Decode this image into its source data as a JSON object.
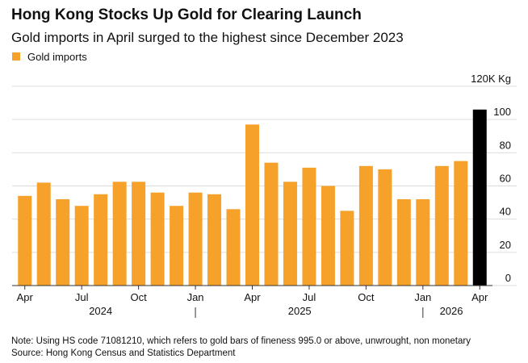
{
  "chart_data": {
    "type": "bar",
    "title": "Hong Kong Stocks Up Gold for Clearing Launch",
    "subtitle": "Gold imports in April surged to the highest since December 2023",
    "series": [
      {
        "name": "Gold imports",
        "color": "#f5a12a",
        "values": [
          54,
          62,
          52,
          48,
          55,
          62.5,
          62.5,
          56,
          48,
          56,
          55,
          46,
          97,
          74,
          62.5,
          71,
          60,
          45,
          72,
          70,
          52,
          52,
          72,
          75,
          106
        ],
        "colors": [
          "#f5a12a",
          "#f5a12a",
          "#f5a12a",
          "#f5a12a",
          "#f5a12a",
          "#f5a12a",
          "#f5a12a",
          "#f5a12a",
          "#f5a12a",
          "#f5a12a",
          "#f5a12a",
          "#f5a12a",
          "#f5a12a",
          "#f5a12a",
          "#f5a12a",
          "#f5a12a",
          "#f5a12a",
          "#f5a12a",
          "#f5a12a",
          "#f5a12a",
          "#f5a12a",
          "#f5a12a",
          "#f5a12a",
          "#f5a12a",
          "#000000"
        ]
      }
    ],
    "categories": [
      "Apr",
      null,
      null,
      "Jul",
      null,
      null,
      "Oct",
      null,
      null,
      "Jan",
      null,
      null,
      "Apr",
      null,
      null,
      "Jul",
      null,
      null,
      "Oct",
      null,
      null,
      "Jan",
      null,
      null,
      "Apr"
    ],
    "years": [
      "2024",
      "2025",
      "2026"
    ],
    "ylim": [
      0,
      120
    ],
    "yticks": [
      0,
      20,
      40,
      60,
      80,
      100,
      {
        "value": 120,
        "label": "120K Kg"
      }
    ],
    "grid": true,
    "note": "Note: Using HS code 71081210, which refers to gold bars of fineness 995.0 or above, unwrought, non monetary",
    "source": "Source: Hong Kong Census and Statistics Department"
  }
}
